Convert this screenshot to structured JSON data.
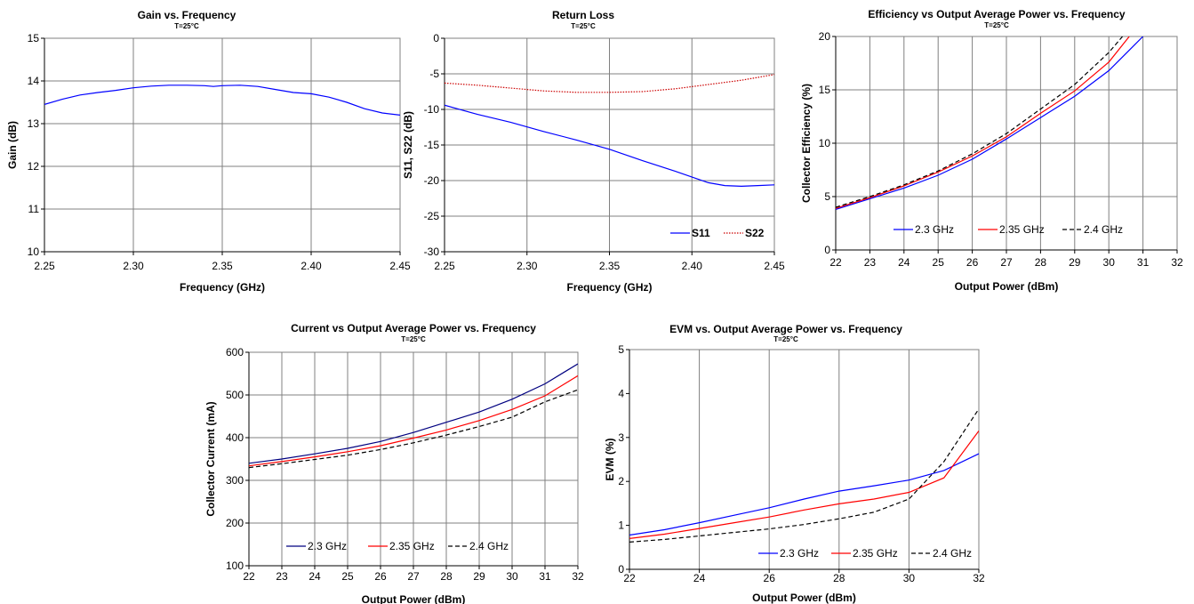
{
  "chart_data": [
    {
      "id": "gain",
      "type": "line",
      "title": "Gain vs. Frequency",
      "subtitle": "T=25°C",
      "xlabel": "Frequency (GHz)",
      "ylabel": "Gain (dB)",
      "xlim": [
        2.25,
        2.45
      ],
      "ylim": [
        10,
        15
      ],
      "xticks": [
        "2.25",
        "2.30",
        "2.35",
        "2.40",
        "2.45"
      ],
      "xtick_values": [
        2.25,
        2.3,
        2.35,
        2.4,
        2.45
      ],
      "yticks": [
        "10",
        "11",
        "12",
        "13",
        "14",
        "15"
      ],
      "ytick_values": [
        10,
        11,
        12,
        13,
        14,
        15
      ],
      "grid_x": [
        2.3,
        2.35,
        2.4
      ],
      "grid_y": [
        11,
        12,
        13,
        14
      ],
      "series": [
        {
          "color": "#0000ff",
          "dash": "",
          "x": [
            2.25,
            2.26,
            2.27,
            2.28,
            2.29,
            2.3,
            2.31,
            2.32,
            2.33,
            2.34,
            2.345,
            2.35,
            2.36,
            2.37,
            2.38,
            2.39,
            2.4,
            2.41,
            2.42,
            2.43,
            2.44,
            2.45
          ],
          "y": [
            13.45,
            13.57,
            13.67,
            13.73,
            13.78,
            13.84,
            13.88,
            13.9,
            13.9,
            13.89,
            13.87,
            13.89,
            13.9,
            13.87,
            13.8,
            13.73,
            13.7,
            13.62,
            13.5,
            13.35,
            13.25,
            13.2
          ]
        }
      ],
      "legend": []
    },
    {
      "id": "return_loss",
      "type": "line",
      "title": "Return Loss",
      "subtitle": "T=25°C",
      "xlabel": "Frequency (GHz)",
      "ylabel": "S11, S22 (dB)",
      "xlim": [
        2.25,
        2.45
      ],
      "ylim": [
        -30,
        0
      ],
      "xticks": [
        "2.25",
        "2.30",
        "2.35",
        "2.40",
        "2.45"
      ],
      "xtick_values": [
        2.25,
        2.3,
        2.35,
        2.4,
        2.45
      ],
      "yticks": [
        "-30",
        "-25",
        "-20",
        "-15",
        "-10",
        "-5",
        "0"
      ],
      "ytick_values": [
        -30,
        -25,
        -20,
        -15,
        -10,
        -5,
        0
      ],
      "grid_x": [
        2.3,
        2.35,
        2.4
      ],
      "grid_y": [
        -25,
        -20,
        -15,
        -10,
        -5
      ],
      "series": [
        {
          "name": "S11",
          "color": "#0000ff",
          "dash": "",
          "x": [
            2.25,
            2.27,
            2.29,
            2.31,
            2.33,
            2.35,
            2.37,
            2.39,
            2.41,
            2.42,
            2.43,
            2.44,
            2.45
          ],
          "y": [
            -9.4,
            -10.7,
            -11.8,
            -13.1,
            -14.3,
            -15.6,
            -17.2,
            -18.7,
            -20.3,
            -20.7,
            -20.8,
            -20.7,
            -20.6
          ]
        },
        {
          "name": "S22",
          "color": "#cc0000",
          "dash": "1.5,1.5",
          "x": [
            2.25,
            2.27,
            2.29,
            2.31,
            2.33,
            2.35,
            2.37,
            2.39,
            2.41,
            2.43,
            2.45
          ],
          "y": [
            -6.3,
            -6.6,
            -7.0,
            -7.4,
            -7.6,
            -7.6,
            -7.5,
            -7.1,
            -6.5,
            -5.9,
            -5.1
          ]
        }
      ],
      "legend": [
        "S11",
        "S22"
      ],
      "legend_position": "bottom-right"
    },
    {
      "id": "efficiency",
      "type": "line",
      "title": "Efficiency vs Output Average Power vs. Frequency",
      "subtitle": "T=25°C",
      "xlabel": "Output Power (dBm)",
      "ylabel": "Collector Efficiency (%)",
      "xlim": [
        22,
        32
      ],
      "ylim": [
        0,
        20
      ],
      "xticks": [
        "22",
        "23",
        "24",
        "25",
        "26",
        "27",
        "28",
        "29",
        "30",
        "31",
        "32"
      ],
      "xtick_values": [
        22,
        23,
        24,
        25,
        26,
        27,
        28,
        29,
        30,
        31,
        32
      ],
      "yticks": [
        "0",
        "5",
        "10",
        "15",
        "20"
      ],
      "ytick_values": [
        0,
        5,
        10,
        15,
        20
      ],
      "grid_x": [
        23,
        24,
        25,
        26,
        27,
        28,
        29,
        30,
        31
      ],
      "grid_y": [
        5,
        10,
        15
      ],
      "series": [
        {
          "name": "2.3 GHz",
          "color": "#0000ff",
          "dash": "",
          "x": [
            22,
            23,
            24,
            25,
            26,
            27,
            28,
            29,
            30,
            31
          ],
          "y": [
            3.8,
            4.8,
            5.8,
            7.0,
            8.5,
            10.4,
            12.4,
            14.4,
            16.8,
            20.0
          ]
        },
        {
          "name": "2.35 GHz",
          "color": "#ff0000",
          "dash": "",
          "x": [
            22,
            23,
            24,
            25,
            26,
            27,
            28,
            29,
            30,
            30.6
          ],
          "y": [
            3.9,
            4.9,
            6.0,
            7.3,
            8.8,
            10.6,
            12.8,
            14.9,
            17.6,
            20.0
          ]
        },
        {
          "name": "2.4 GHz",
          "color": "#000000",
          "dash": "5,3",
          "x": [
            22,
            23,
            24,
            25,
            26,
            27,
            28,
            29,
            30,
            30.4
          ],
          "y": [
            4.0,
            5.0,
            6.1,
            7.4,
            9.0,
            10.9,
            13.2,
            15.5,
            18.5,
            20.0
          ]
        }
      ],
      "legend": [
        "2.3 GHz",
        "2.35 GHz",
        "2.4 GHz"
      ],
      "legend_position": "bottom"
    },
    {
      "id": "current",
      "type": "line",
      "title": "Current vs Output Average Power vs. Frequency",
      "subtitle": "T=25°C",
      "xlabel": "Output Power (dBm)",
      "ylabel": "Collector Current (mA)",
      "xlim": [
        22,
        32
      ],
      "ylim": [
        100,
        600
      ],
      "xticks": [
        "22",
        "23",
        "24",
        "25",
        "26",
        "27",
        "28",
        "29",
        "30",
        "31",
        "32"
      ],
      "xtick_values": [
        22,
        23,
        24,
        25,
        26,
        27,
        28,
        29,
        30,
        31,
        32
      ],
      "yticks": [
        "100",
        "200",
        "300",
        "400",
        "500",
        "600"
      ],
      "ytick_values": [
        100,
        200,
        300,
        400,
        500,
        600
      ],
      "grid_x": [
        23,
        24,
        25,
        26,
        27,
        28,
        29,
        30,
        31
      ],
      "grid_y": [
        200,
        300,
        400,
        500
      ],
      "series": [
        {
          "name": "2.3 GHz",
          "color": "#000080",
          "dash": "",
          "x": [
            22,
            23,
            24,
            25,
            26,
            27,
            28,
            29,
            30,
            31,
            32
          ],
          "y": [
            340,
            350,
            362,
            375,
            391,
            412,
            436,
            460,
            490,
            526,
            573
          ]
        },
        {
          "name": "2.35 GHz",
          "color": "#ff0000",
          "dash": "",
          "x": [
            22,
            23,
            24,
            25,
            26,
            27,
            28,
            29,
            30,
            31,
            32
          ],
          "y": [
            334,
            344,
            355,
            367,
            381,
            399,
            418,
            440,
            466,
            498,
            545
          ]
        },
        {
          "name": "2.4 GHz",
          "color": "#000000",
          "dash": "5,3",
          "x": [
            22,
            23,
            24,
            25,
            26,
            27,
            28,
            29,
            30,
            31,
            32
          ],
          "y": [
            330,
            339,
            349,
            359,
            372,
            388,
            406,
            426,
            448,
            484,
            512
          ]
        }
      ],
      "legend": [
        "2.3 GHz",
        "2.35 GHz",
        "2.4 GHz"
      ],
      "legend_position": "bottom"
    },
    {
      "id": "evm",
      "type": "line",
      "title": "EVM vs. Output Average Power vs. Frequency",
      "subtitle": "T=25°C",
      "xlabel": "Output Power (dBm)",
      "ylabel": "EVM (%)",
      "xlim": [
        22,
        32
      ],
      "ylim": [
        0,
        5
      ],
      "xticks": [
        "22",
        "24",
        "26",
        "28",
        "30",
        "32"
      ],
      "xtick_values": [
        22,
        24,
        26,
        28,
        30,
        32
      ],
      "yticks": [
        "0",
        "1",
        "2",
        "3",
        "4",
        "5"
      ],
      "ytick_values": [
        0,
        1,
        2,
        3,
        4,
        5
      ],
      "grid_x": [
        24,
        26,
        28,
        30
      ],
      "grid_y": [],
      "series": [
        {
          "name": "2.3 GHz",
          "color": "#0000ff",
          "dash": "",
          "x": [
            22,
            23,
            24,
            25,
            26,
            27,
            28,
            29,
            30,
            31,
            32
          ],
          "y": [
            0.78,
            0.9,
            1.06,
            1.23,
            1.4,
            1.6,
            1.78,
            1.9,
            2.03,
            2.25,
            2.63
          ]
        },
        {
          "name": "2.35 GHz",
          "color": "#ff0000",
          "dash": "",
          "x": [
            22,
            23,
            24,
            25,
            26,
            27,
            28,
            29,
            30,
            31,
            32
          ],
          "y": [
            0.7,
            0.8,
            0.93,
            1.06,
            1.19,
            1.35,
            1.49,
            1.6,
            1.75,
            2.08,
            3.15
          ]
        },
        {
          "name": "2.4 GHz",
          "color": "#000000",
          "dash": "5,3",
          "x": [
            22,
            23,
            24,
            25,
            26,
            27,
            28,
            29,
            30,
            31,
            32
          ],
          "y": [
            0.62,
            0.68,
            0.76,
            0.84,
            0.92,
            1.02,
            1.15,
            1.3,
            1.6,
            2.45,
            3.65
          ]
        }
      ],
      "legend": [
        "2.3 GHz",
        "2.35 GHz",
        "2.4 GHz"
      ],
      "legend_position": "bottom-right"
    }
  ]
}
